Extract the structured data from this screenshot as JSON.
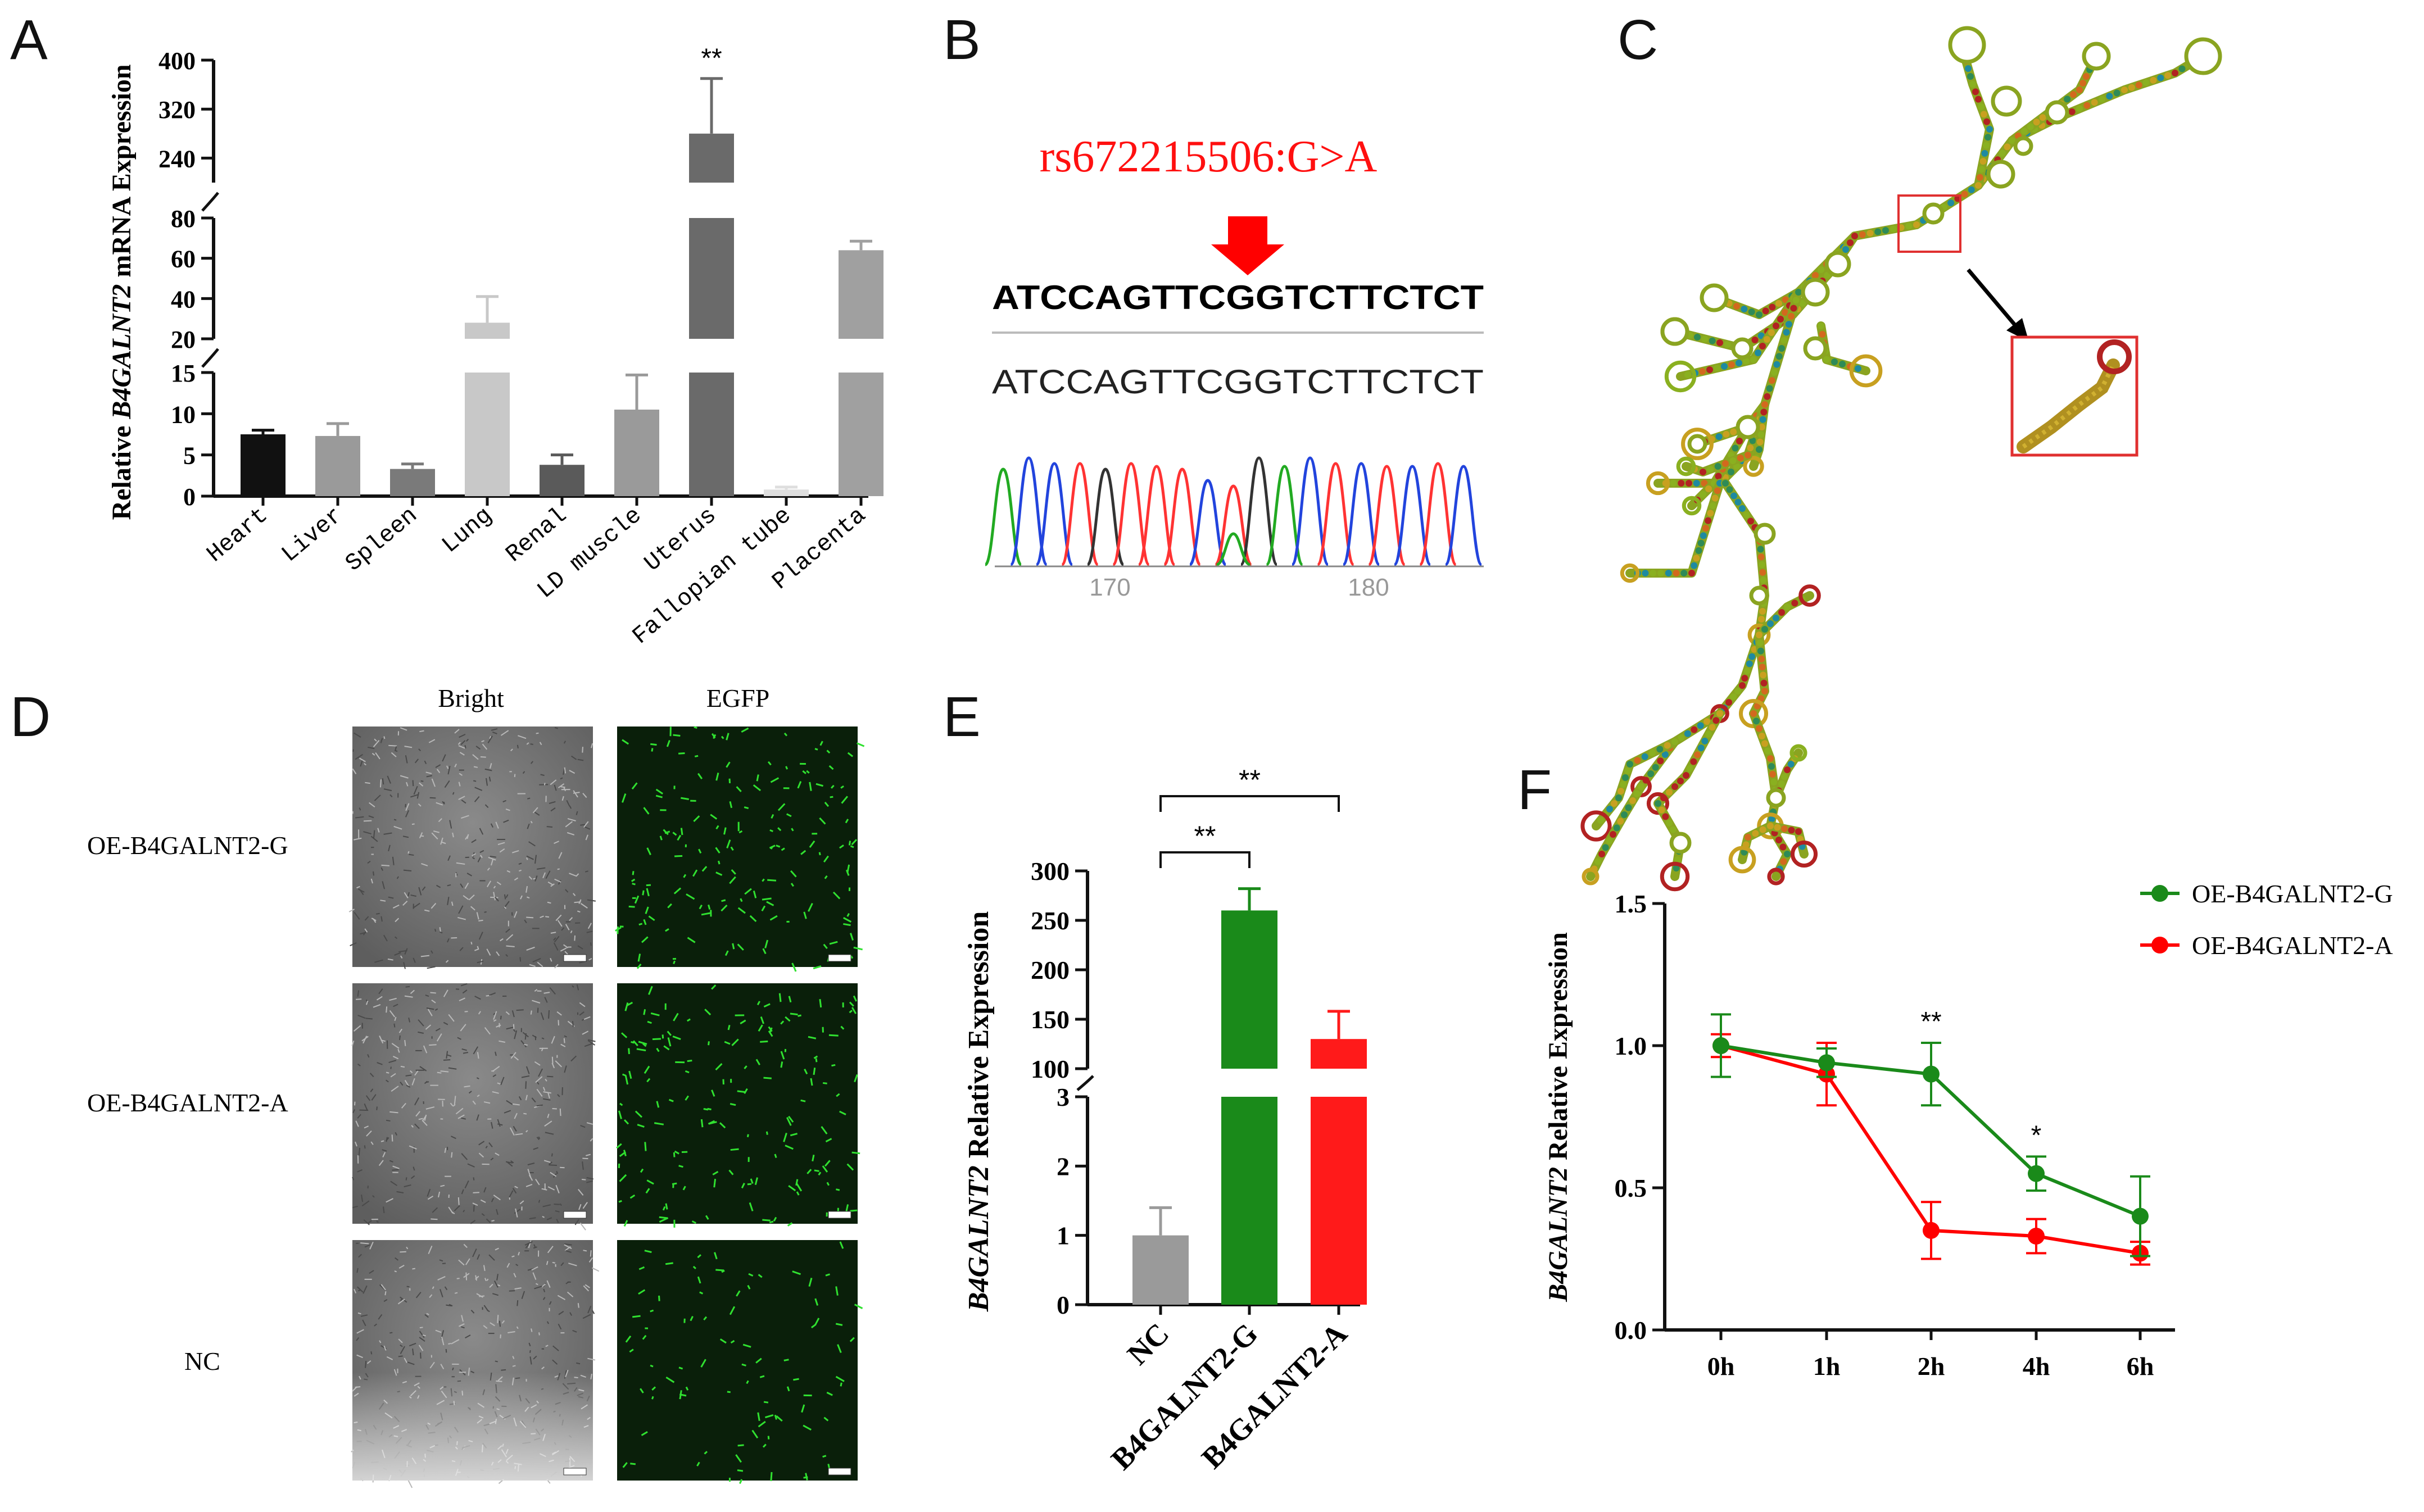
{
  "panels": {
    "a": "A",
    "b": "B",
    "c": "C",
    "d": "D",
    "e": "E",
    "f": "F"
  },
  "colors": {
    "heart": "#111111",
    "liver": "#9a9a9a",
    "spleen": "#7a7a7a",
    "lung": "#c8c8c8",
    "renal": "#5a5a5a",
    "ld": "#9a9a9a",
    "uterus": "#6a6a6a",
    "fallopian": "#dedede",
    "placenta": "#a0a0a0",
    "nc": "#9a9a9a",
    "g": "#1a8a1a",
    "a": "#ff1a1a",
    "red": "#ff0000"
  },
  "chart_data": [
    {
      "panel": "A",
      "type": "bar",
      "ylabel_parts": [
        "Relative ",
        "B4GALNT2",
        " mRNA  Expression"
      ],
      "categories": [
        "Heart",
        "Liver",
        "Spleen",
        "Lung",
        "Renal",
        "LD muscle",
        "Uterus",
        "Fallopian tube",
        "Placenta"
      ],
      "values": [
        7.5,
        7.3,
        3.3,
        28,
        3.8,
        10.5,
        280,
        0.8,
        64
      ],
      "errors": [
        0.5,
        1.5,
        0.6,
        13,
        1.2,
        4.2,
        90,
        0.3,
        4.5
      ],
      "significance": [
        {
          "category": "Uterus",
          "label": "**"
        }
      ],
      "axis_segments": [
        {
          "range": [
            0,
            15
          ],
          "ticks": [
            "0",
            "5",
            "10",
            "15"
          ]
        },
        {
          "range": [
            20,
            80
          ],
          "ticks": [
            "20",
            "40",
            "60",
            "80"
          ]
        },
        {
          "range": [
            200,
            400
          ],
          "ticks": [
            "240",
            "320",
            "400"
          ]
        }
      ]
    },
    {
      "panel": "B",
      "type": "table",
      "snp_label": "rs672215506:G>A",
      "ref_sequence": "ATCCAGTTCGGTCTTCTCT",
      "sample_sequence": "ATCCAGTTCGGTCTTCTCT",
      "position_ticks": [
        "170",
        "180"
      ]
    },
    {
      "panel": "E",
      "type": "bar",
      "ylabel_parts": [
        "B4GALNT2",
        " Relative Expression"
      ],
      "categories": [
        "NC",
        "B4GALNT2-G",
        "B4GALNT2-A"
      ],
      "values": [
        1.0,
        260,
        130
      ],
      "errors": [
        0.4,
        22,
        28
      ],
      "axis_segments": [
        {
          "range": [
            0,
            3
          ],
          "ticks": [
            "0",
            "1",
            "2",
            "3"
          ]
        },
        {
          "range": [
            100,
            300
          ],
          "ticks": [
            "100",
            "150",
            "200",
            "250",
            "300"
          ]
        }
      ],
      "comparisons": [
        {
          "from": "NC",
          "to": "B4GALNT2-G",
          "label": "**"
        },
        {
          "from": "NC",
          "to": "B4GALNT2-A",
          "label": "**"
        }
      ]
    },
    {
      "panel": "F",
      "type": "line",
      "ylabel_parts": [
        "B4GALNT2",
        " Relative Expression"
      ],
      "x": [
        "0h",
        "1h",
        "2h",
        "4h",
        "6h"
      ],
      "ylim": [
        0,
        1.5
      ],
      "yticks": [
        "0.0",
        "0.5",
        "1.0",
        "1.5"
      ],
      "series": [
        {
          "name": "OE-B4GALNT2-G",
          "values": [
            1.0,
            0.94,
            0.9,
            0.55,
            0.4
          ],
          "errors": [
            0.11,
            0.05,
            0.11,
            0.06,
            0.14
          ]
        },
        {
          "name": "OE-B4GALNT2-A",
          "values": [
            1.0,
            0.9,
            0.35,
            0.33,
            0.27
          ],
          "errors": [
            0.04,
            0.11,
            0.1,
            0.06,
            0.04
          ]
        }
      ],
      "significance": [
        {
          "x": "2h",
          "label": "**"
        },
        {
          "x": "4h",
          "label": "*"
        }
      ]
    }
  ],
  "panelD": {
    "col_labels": [
      "Bright",
      "EGFP"
    ],
    "row_labels": [
      "OE-B4GALNT2-G",
      "OE-B4GALNT2-A",
      "NC"
    ]
  }
}
